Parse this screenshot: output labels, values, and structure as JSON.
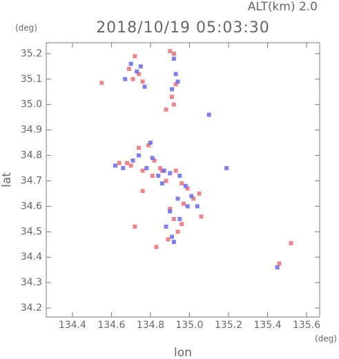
{
  "chart_data": {
    "type": "scatter",
    "title": "2018/10/19 05:03:30",
    "subtitle": "ALT(km) 2.0",
    "y_unit": "(deg)",
    "x_unit": "(deg)",
    "x_label": "lon",
    "y_label": "lat",
    "xlim": [
      134.266,
      135.667
    ],
    "ylim": [
      34.165,
      35.243
    ],
    "xticks": [
      134.4,
      134.6,
      134.8,
      {
        "value": 135.0,
        "label": "135.0"
      },
      135.2,
      135.4,
      135.6
    ],
    "yticks": [
      34.2,
      34.3,
      34.4,
      34.5,
      34.6,
      34.7,
      34.8,
      34.9,
      {
        "value": 35.0,
        "label": "35.0"
      },
      35.1,
      35.2
    ],
    "series": [
      {
        "color": "#e8707a",
        "x": [
          134.55,
          134.69,
          134.72,
          134.74,
          134.76,
          134.71,
          134.9,
          134.92,
          134.93,
          134.91,
          134.88,
          134.92,
          134.64,
          134.68,
          134.7,
          134.74,
          134.79,
          134.82,
          134.76,
          134.81,
          134.85,
          134.88,
          134.93,
          134.96,
          134.99,
          135.02,
          135.05,
          134.97,
          134.9,
          134.92,
          134.94,
          134.96,
          134.89,
          134.83,
          134.76,
          134.72,
          135.52,
          135.46,
          135.06,
          134.86
        ],
        "y": [
          35.085,
          35.14,
          35.19,
          35.12,
          35.09,
          35.1,
          35.21,
          35.2,
          35.08,
          35.03,
          34.98,
          35.0,
          34.77,
          34.77,
          34.76,
          34.83,
          34.84,
          34.78,
          34.74,
          34.72,
          34.75,
          34.7,
          34.74,
          34.69,
          34.67,
          34.63,
          34.65,
          34.61,
          34.59,
          34.55,
          34.5,
          34.53,
          34.47,
          34.44,
          34.66,
          34.52,
          34.455,
          34.375,
          34.56,
          34.74
        ]
      },
      {
        "color": "#6a6ae8",
        "x": [
          134.67,
          134.7,
          134.73,
          134.75,
          134.77,
          134.92,
          134.94,
          134.91,
          134.93,
          134.62,
          134.66,
          134.71,
          134.74,
          134.78,
          134.81,
          134.84,
          134.87,
          134.9,
          134.95,
          134.98,
          135.01,
          135.04,
          134.94,
          134.9,
          134.88,
          134.91,
          134.95,
          134.92,
          135.19,
          135.45,
          135.1,
          134.8,
          134.86,
          134.99
        ],
        "y": [
          35.1,
          35.16,
          35.13,
          35.15,
          35.07,
          35.18,
          35.09,
          35.06,
          35.12,
          34.76,
          34.75,
          34.78,
          34.8,
          34.75,
          34.79,
          34.72,
          34.74,
          34.73,
          34.72,
          34.68,
          34.64,
          34.6,
          34.63,
          34.58,
          34.52,
          34.48,
          34.55,
          34.46,
          34.75,
          34.36,
          34.96,
          34.85,
          34.69,
          34.6
        ]
      }
    ]
  }
}
